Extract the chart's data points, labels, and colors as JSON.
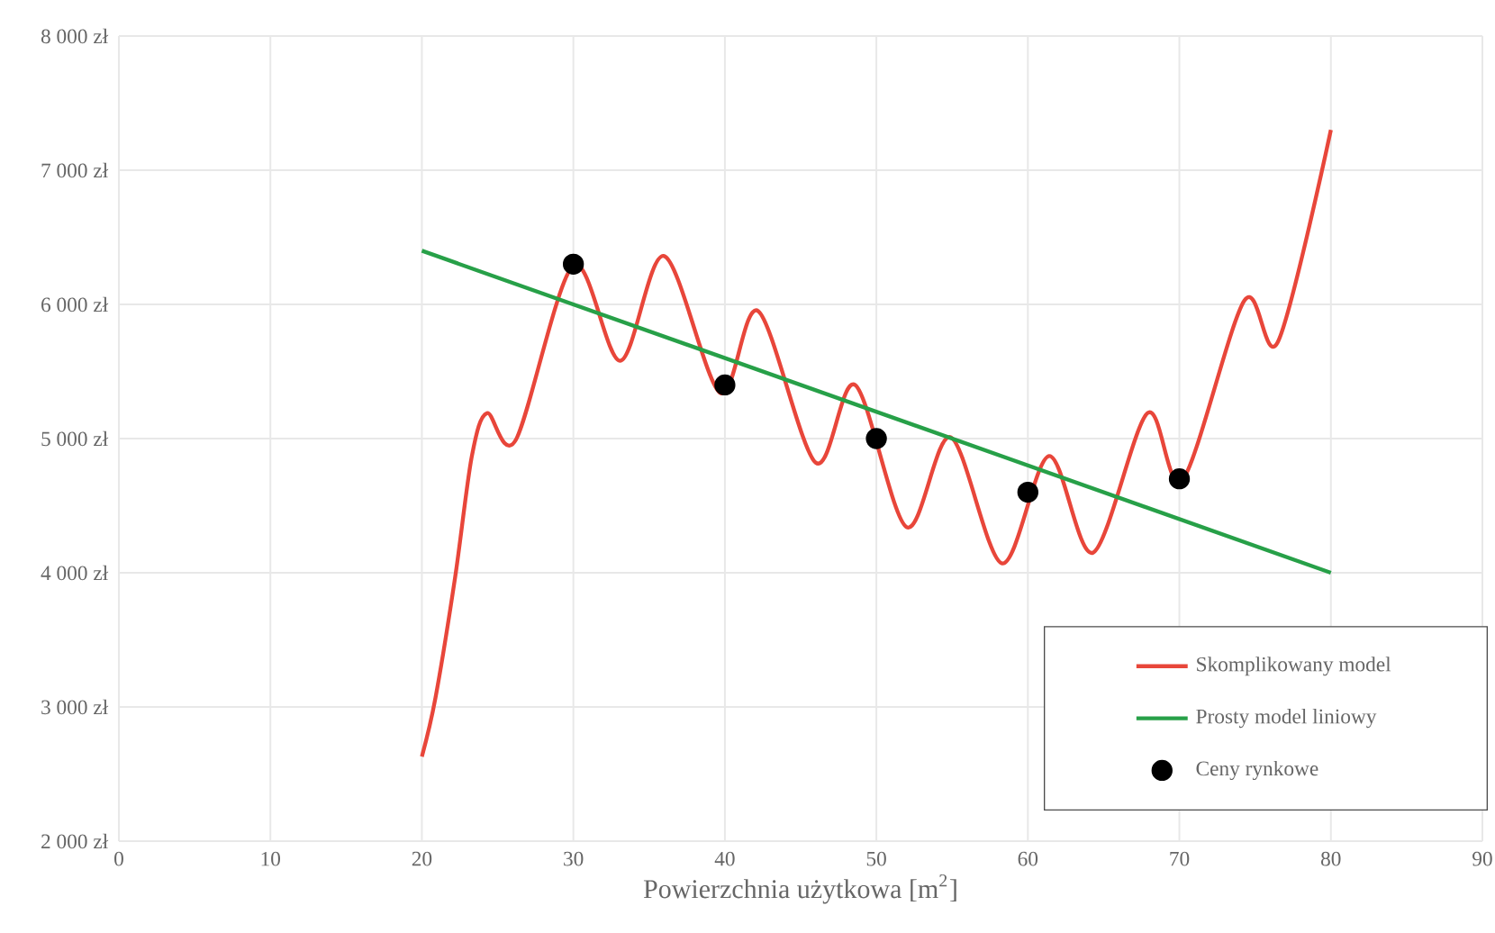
{
  "chart_data": {
    "type": "line",
    "xlabel": "Powierzchnia użytkowa [m$^{2}$]",
    "xlim": [
      0,
      90
    ],
    "xticks": [
      0,
      10,
      20,
      30,
      40,
      50,
      60,
      70,
      80,
      90
    ],
    "ylim": [
      2000,
      8000
    ],
    "yticks": [
      {
        "value": 2000,
        "label": "2 000 zł"
      },
      {
        "value": 3000,
        "label": "3 000 zł"
      },
      {
        "value": 4000,
        "label": "4 000 zł"
      },
      {
        "value": 5000,
        "label": "5 000 zł"
      },
      {
        "value": 6000,
        "label": "6 000 zł"
      },
      {
        "value": 7000,
        "label": "7 000 zł"
      },
      {
        "value": 8000,
        "label": "8 000 zł"
      }
    ],
    "grid": true,
    "legend": "bottom right",
    "series": [
      {
        "name": "Skomplikowany model",
        "color": "#e8463a",
        "x": [
          20,
          20.9,
          22.2,
          23.3,
          24.3,
          26.2,
          30,
          33.1,
          36,
          39.7,
          42.2,
          46,
          48.6,
          52,
          54.9,
          58.3,
          61.4,
          64.3,
          67.9,
          70.2,
          74.3,
          76.5,
          80
        ],
        "values": [
          2630,
          3070,
          3970,
          4870,
          5190,
          4990,
          6290,
          5580,
          6360,
          5340,
          5950,
          4820,
          5400,
          4340,
          5010,
          4070,
          4870,
          4150,
          5190,
          4690,
          6030,
          5720,
          7300
        ]
      },
      {
        "name": "Prosty model liniowy",
        "color": "#27a048",
        "x": [
          20,
          80
        ],
        "values": [
          6400,
          4000
        ]
      },
      {
        "name": "Ceny rynkowe",
        "type": "scatter",
        "color": "#000000",
        "marker": "circle",
        "x": [
          30,
          40,
          50,
          60,
          70
        ],
        "values": [
          6300,
          5400,
          5000,
          4600,
          4700
        ]
      }
    ]
  }
}
